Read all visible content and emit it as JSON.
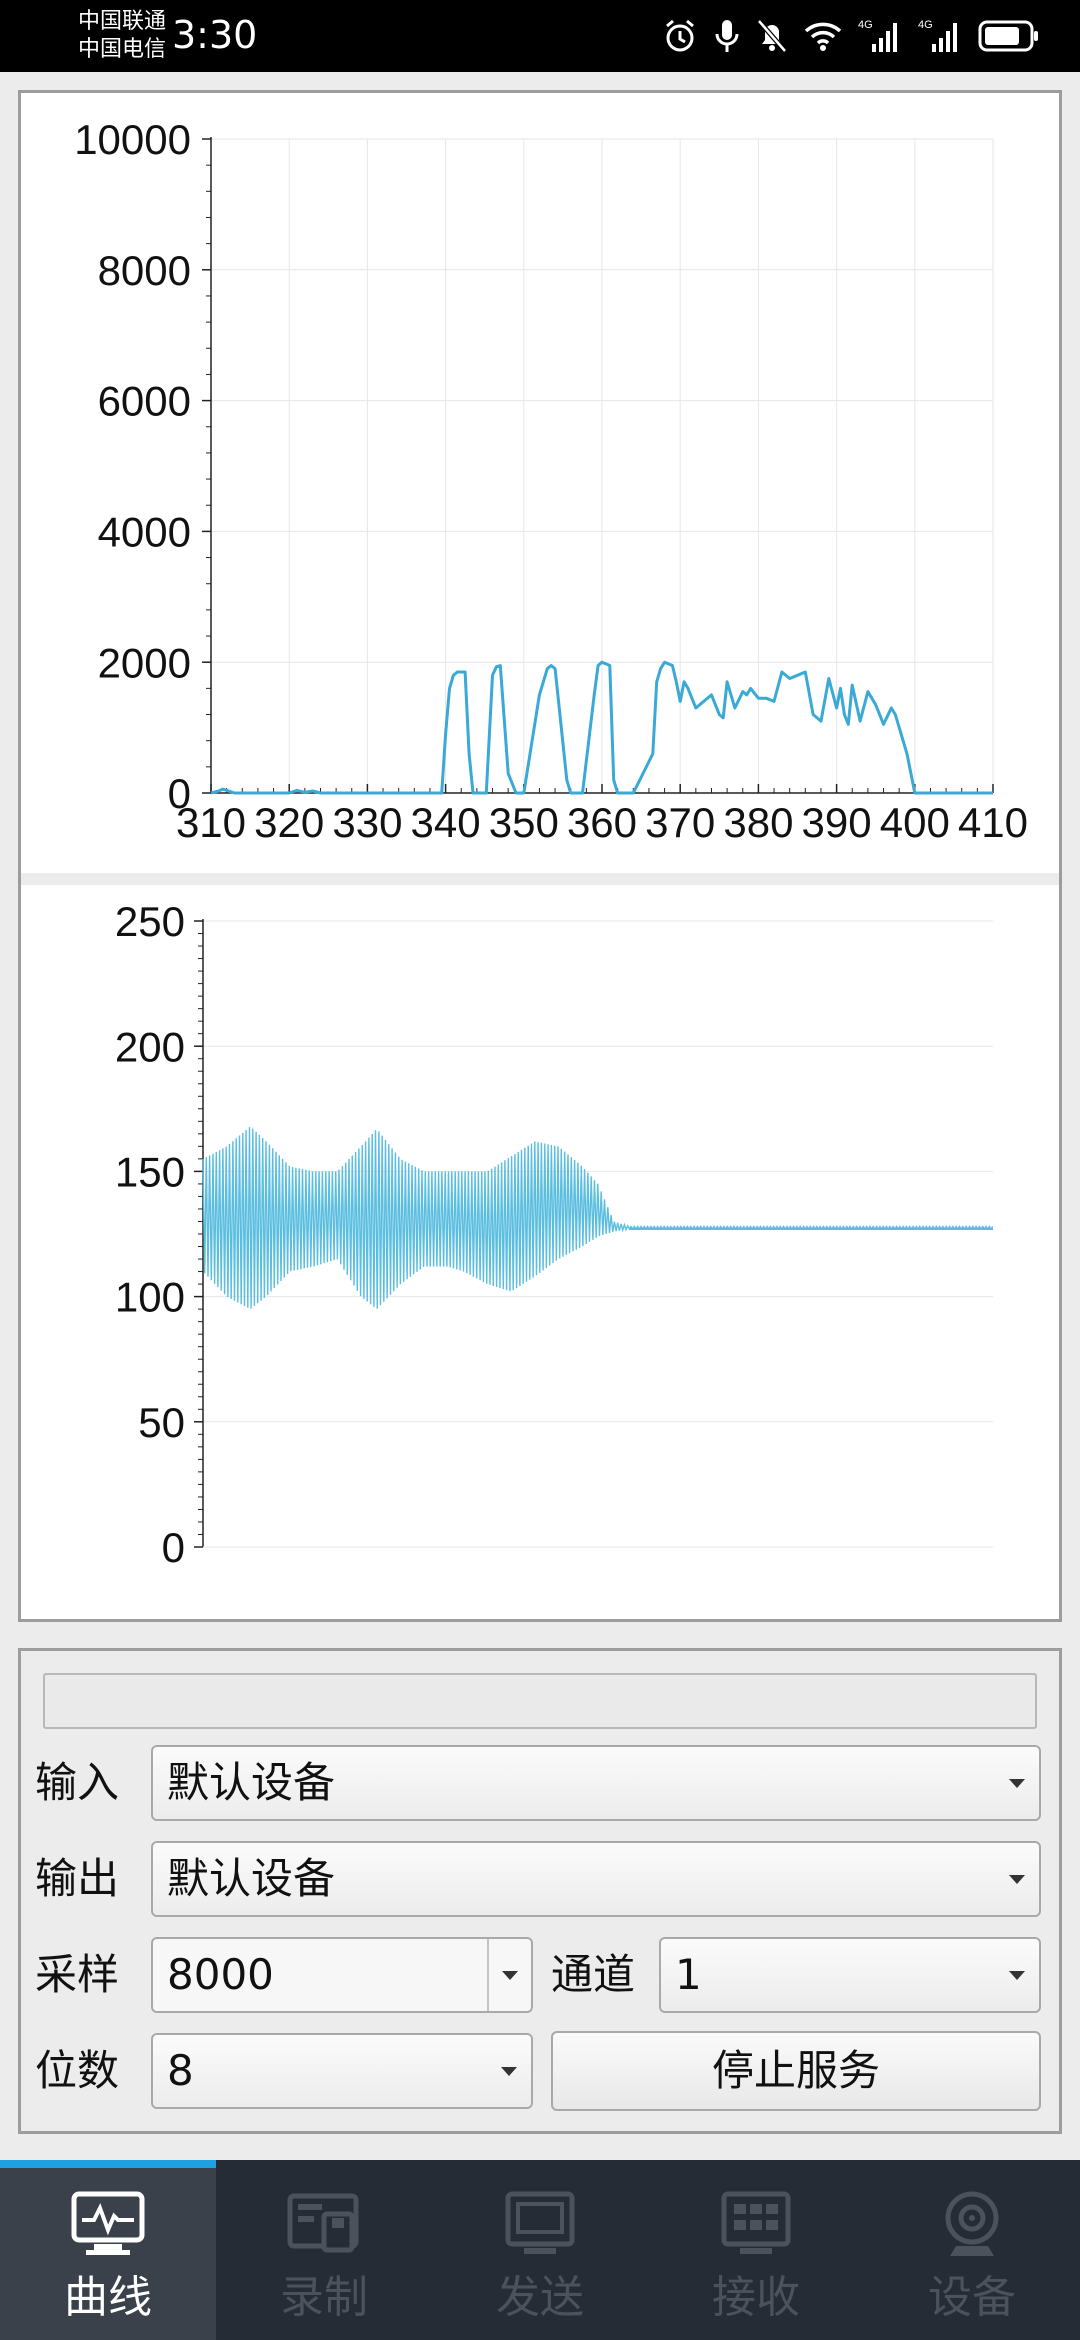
{
  "status_bar": {
    "carrier_1": "中国联通",
    "carrier_2": "中国电信",
    "time": "3:30",
    "network_1": "4G",
    "network_2": "4G",
    "icons": [
      "alarm-icon",
      "microphone-icon",
      "bell-muted-icon",
      "wifi-icon",
      "signal-icon",
      "signal-icon",
      "battery-icon"
    ]
  },
  "charts": [
    {
      "chart_data": {
        "type": "line",
        "title": "",
        "xlabel": "",
        "ylabel": "",
        "xlim": [
          310,
          410
        ],
        "ylim": [
          0,
          10000
        ],
        "x_ticks": [
          "310",
          "320",
          "330",
          "340",
          "350",
          "360",
          "370",
          "380",
          "390",
          "400",
          "410"
        ],
        "y_ticks": [
          "0",
          "2000",
          "4000",
          "6000",
          "8000",
          "10000"
        ],
        "grid": true,
        "color": "#3aa9d6",
        "series": [
          {
            "x": [
              310,
              311,
              311.5,
              312.5,
              313,
              314,
              320,
              321,
              322,
              323,
              324,
              325,
              339.5,
              340,
              340.5,
              341,
              341.5,
              342.5,
              343,
              343.5,
              345.2,
              346,
              346.5,
              347,
              348,
              349,
              350,
              352,
              353,
              353.5,
              354,
              355.5,
              356,
              356.5,
              357.5,
              359,
              359.5,
              360,
              361,
              361.5,
              362,
              363,
              363.5,
              364,
              366.5,
              367,
              367.5,
              368,
              369,
              369.5,
              370,
              370.5,
              371,
              372,
              373,
              374,
              375,
              375.5,
              376,
              377,
              378,
              378.5,
              379,
              380,
              381,
              382,
              383,
              384,
              385,
              386,
              387,
              388,
              389,
              390,
              390.5,
              391,
              391.5,
              392,
              393,
              394,
              395,
              396,
              397,
              397.5,
              398,
              399,
              400,
              401,
              402,
              402.5,
              403,
              403.5,
              404,
              405,
              406,
              407,
              408,
              409,
              410
            ],
            "y": [
              0,
              30,
              60,
              20,
              0,
              0,
              0,
              40,
              10,
              30,
              0,
              0,
              0,
              900,
              1600,
              1800,
              1850,
              1850,
              600,
              0,
              0,
              1800,
              1930,
              1950,
              300,
              0,
              0,
              1500,
              1900,
              1950,
              1900,
              200,
              0,
              0,
              0,
              1500,
              1950,
              2000,
              1950,
              200,
              0,
              0,
              0,
              0,
              600,
              1700,
              1900,
              2000,
              1950,
              1700,
              1400,
              1700,
              1600,
              1300,
              1400,
              1500,
              1200,
              1150,
              1700,
              1300,
              1550,
              1500,
              1600,
              1450,
              1450,
              1400,
              1850,
              1750,
              1800,
              1850,
              1200,
              1100,
              1750,
              1300,
              1600,
              1200,
              1050,
              1650,
              1100,
              1550,
              1350,
              1050,
              1300,
              1200,
              1000,
              600,
              0,
              0,
              0,
              0,
              0,
              0,
              0,
              0,
              0,
              0,
              0,
              0,
              0
            ]
          }
        ]
      }
    },
    {
      "chart_data": {
        "type": "line",
        "title": "",
        "xlabel": "",
        "ylabel": "",
        "ylim": [
          0,
          250
        ],
        "y_ticks": [
          "0",
          "50",
          "100",
          "150",
          "200",
          "250"
        ],
        "grid": true,
        "color": "#5bbee0",
        "baseline": 127,
        "series": [
          {
            "description_of_envelope_x_fraction": [
              0,
              0.03,
              0.06,
              0.08,
              0.11,
              0.14,
              0.17,
              0.2,
              0.22,
              0.25,
              0.28,
              0.31,
              0.33,
              0.36,
              0.39,
              0.42,
              0.45,
              0.48,
              0.5,
              0.52,
              0.54,
              1.0
            ],
            "upper": [
              155,
              160,
              168,
              162,
              152,
              150,
              150,
              160,
              167,
              155,
              150,
              150,
              150,
              150,
              156,
              162,
              160,
              152,
              145,
              130,
              128,
              128
            ],
            "lower": [
              110,
              100,
              95,
              100,
              110,
              112,
              115,
              100,
              95,
              105,
              112,
              112,
              110,
              105,
              102,
              108,
              115,
              120,
              124,
              126,
              127,
              127
            ]
          }
        ]
      }
    }
  ],
  "controls": {
    "input_label": "输入",
    "input_value": "默认设备",
    "output_label": "输出",
    "output_value": "默认设备",
    "sample_label": "采样",
    "sample_value": "8000",
    "channel_label": "通道",
    "channel_value": "1",
    "bits_label": "位数",
    "bits_value": "8",
    "stop_button": "停止服务"
  },
  "nav": [
    {
      "label": "曲线",
      "icon": "monitor-curve-icon",
      "active": true
    },
    {
      "label": "录制",
      "icon": "record-disk-icon",
      "active": false
    },
    {
      "label": "发送",
      "icon": "screen-send-icon",
      "active": false
    },
    {
      "label": "接收",
      "icon": "grid-receive-icon",
      "active": false
    },
    {
      "label": "设备",
      "icon": "webcam-device-icon",
      "active": false
    }
  ],
  "colors": {
    "accent": "#1fa0e0",
    "nav_bg": "#262c35",
    "nav_active_bg": "#3b414a",
    "line_1": "#3aa9d6",
    "line_2": "#5bbee0"
  }
}
